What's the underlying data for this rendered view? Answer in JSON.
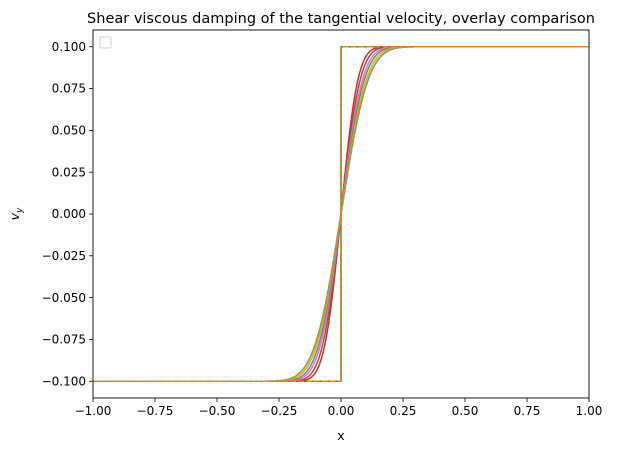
{
  "chart_data": {
    "type": "line",
    "title": "Shear viscous damping of the tangential velocity, overlay comparison",
    "xlabel": "x",
    "ylabel": "v",
    "ylabel_subscript": "y",
    "xlim": [
      -1.0,
      1.0
    ],
    "ylim": [
      -0.11,
      0.11
    ],
    "x_ticks": [
      -1.0,
      -0.75,
      -0.5,
      -0.25,
      0.0,
      0.25,
      0.5,
      0.75,
      1.0
    ],
    "x_tick_labels": [
      "−1.00",
      "−0.75",
      "−0.50",
      "−0.25",
      "0.00",
      "0.25",
      "0.50",
      "0.75",
      "1.00"
    ],
    "y_ticks": [
      -0.1,
      -0.075,
      -0.05,
      -0.025,
      0.0,
      0.025,
      0.05,
      0.075,
      0.1
    ],
    "y_tick_labels": [
      "−0.100",
      "−0.075",
      "−0.050",
      "−0.025",
      "0.000",
      "0.025",
      "0.050",
      "0.075",
      "0.100"
    ],
    "grid": false,
    "legend": {
      "placement": "top-left",
      "entries": []
    },
    "amplitude": 0.1,
    "series": [
      {
        "kind": "step",
        "style": "solid",
        "color": "#2ca02c",
        "width_scale": 0
      },
      {
        "kind": "smooth",
        "style": "solid",
        "color": "#d62728",
        "width_scale": 0.075
      },
      {
        "kind": "smooth",
        "style": "solid",
        "color": "#8c564b",
        "width_scale": 0.085
      },
      {
        "kind": "smooth",
        "style": "solid",
        "color": "#e377c2",
        "width_scale": 0.095
      },
      {
        "kind": "smooth",
        "style": "solid",
        "color": "#7f7f7f",
        "width_scale": 0.103
      },
      {
        "kind": "smooth",
        "style": "solid",
        "color": "#bcbd22",
        "width_scale": 0.112
      },
      {
        "kind": "smooth",
        "style": "solid",
        "color": "#17becf",
        "width_scale": 0.12
      },
      {
        "kind": "smooth",
        "style": "dashed",
        "color": "#1f77b4",
        "width_scale": 0.12
      },
      {
        "kind": "step",
        "style": "dashed",
        "color": "#1f77b4",
        "width_scale": 0
      },
      {
        "kind": "smooth",
        "style": "dashed",
        "color": "#ff7f0e",
        "width_scale": 0.12
      },
      {
        "kind": "step",
        "style": "dashed",
        "color": "#ff7f0e",
        "width_scale": 0
      }
    ]
  }
}
